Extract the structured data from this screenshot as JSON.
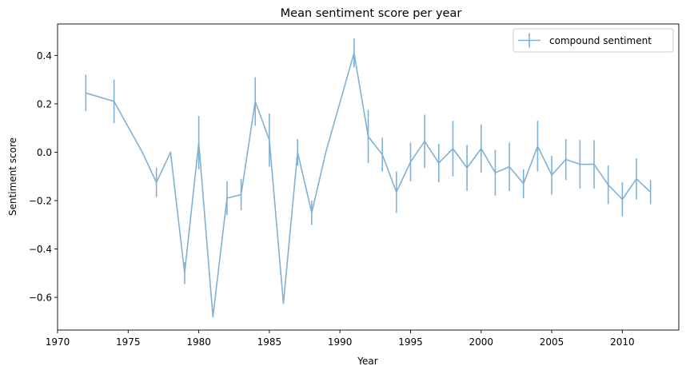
{
  "chart_data": {
    "type": "line",
    "title": "Mean sentiment score per year",
    "xlabel": "Year",
    "ylabel": "Sentiment score",
    "xlim": [
      1970,
      2014
    ],
    "ylim": [
      -0.735,
      0.53
    ],
    "xticks": [
      1970,
      1975,
      1980,
      1985,
      1990,
      1995,
      2000,
      2005,
      2010
    ],
    "yticks": [
      -0.6,
      -0.4,
      -0.2,
      0.0,
      0.2,
      0.4
    ],
    "ytick_labels": [
      "−0.6",
      "−0.4",
      "−0.2",
      "0.0",
      "0.2",
      "0.4"
    ],
    "grid": false,
    "legend_position": "top-right",
    "series": [
      {
        "name": "compound sentiment",
        "color": "#7fb1d5",
        "x": [
          1972,
          1974,
          1976,
          1977,
          1978,
          1979,
          1980,
          1981,
          1982,
          1983,
          1984,
          1985,
          1986,
          1987,
          1988,
          1989,
          1991,
          1992,
          1993,
          1994,
          1995,
          1996,
          1997,
          1998,
          1999,
          2000,
          2001,
          2002,
          2003,
          2004,
          2005,
          2006,
          2007,
          2008,
          2009,
          2010,
          2011,
          2012
        ],
        "y": [
          0.245,
          0.21,
          0.0,
          -0.125,
          0.0,
          -0.5,
          0.04,
          -0.68,
          -0.19,
          -0.175,
          0.21,
          0.05,
          -0.625,
          0.0,
          -0.25,
          0.0,
          0.41,
          0.065,
          -0.01,
          -0.165,
          -0.04,
          0.045,
          -0.045,
          0.015,
          -0.065,
          0.015,
          -0.085,
          -0.06,
          -0.13,
          0.025,
          -0.095,
          -0.03,
          -0.05,
          -0.05,
          -0.135,
          -0.195,
          -0.11,
          -0.165
        ],
        "err": [
          0.075,
          0.09,
          0,
          0.06,
          0,
          0.045,
          0.11,
          0,
          0.07,
          0.065,
          0.1,
          0.11,
          0,
          0.055,
          0.05,
          0,
          0.06,
          0.11,
          0.07,
          0.085,
          0.08,
          0.11,
          0.08,
          0.115,
          0.095,
          0.1,
          0.095,
          0.1,
          0.06,
          0.105,
          0.08,
          0.085,
          0.1,
          0.1,
          0.08,
          0.07,
          0.085,
          0.05
        ]
      }
    ]
  }
}
